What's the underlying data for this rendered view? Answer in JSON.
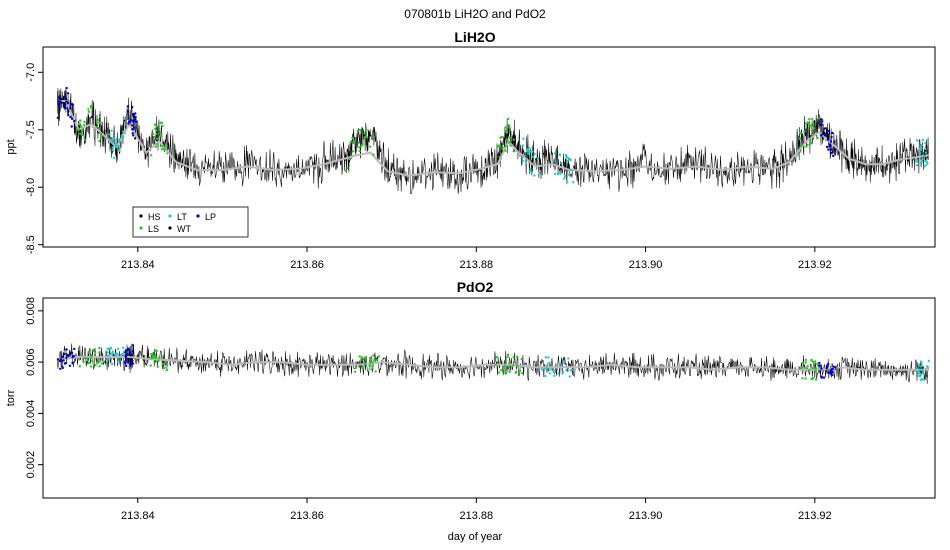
{
  "figure": {
    "title": "070801b   LiH2O and PdO2",
    "xlabel": "day of year"
  },
  "colors": {
    "HS": "#000000",
    "LS": "#22cc22",
    "LT": "#22cccc",
    "WT": "#000000",
    "LP": "#0000cc",
    "trace": "#000000",
    "smooth": "#bbbbbb"
  },
  "chart_data": [
    {
      "type": "line",
      "title": "LiH2O",
      "ylabel": "ppt",
      "xlim": [
        213.8288,
        213.9342
      ],
      "ylim": [
        -8.52,
        -6.78
      ],
      "x_ticks": [
        "213.84",
        "213.86",
        "213.88",
        "213.90",
        "213.92"
      ],
      "y_ticks": [
        "-7.0",
        "-7.5",
        "-8.0",
        "-8.5"
      ],
      "legend": {
        "placement": "bottom-left",
        "entries": [
          "HS",
          "LS",
          "LT",
          "WT",
          "LP"
        ]
      },
      "series": [
        {
          "name": "",
          "style": "raw",
          "x": [
            213.8305,
            213.8315,
            213.833,
            213.8345,
            213.836,
            213.8375,
            213.839,
            213.841,
            213.8425,
            213.8445,
            213.847,
            213.85,
            213.853,
            213.856,
            213.859,
            213.862,
            213.8645,
            213.866,
            213.8675,
            213.8695,
            213.872,
            213.875,
            213.878,
            213.8805,
            213.8825,
            213.8838,
            213.885,
            213.887,
            213.889,
            213.891,
            213.894,
            213.897,
            213.9,
            213.903,
            213.906,
            213.909,
            213.912,
            213.915,
            213.917,
            213.919,
            213.9205,
            213.922,
            213.924,
            213.926,
            213.928,
            213.93,
            213.932,
            213.9335
          ],
          "y": [
            -7.3,
            -7.2,
            -7.55,
            -7.4,
            -7.55,
            -7.65,
            -7.35,
            -7.7,
            -7.5,
            -7.75,
            -7.85,
            -7.85,
            -7.8,
            -7.85,
            -7.85,
            -7.8,
            -7.75,
            -7.6,
            -7.55,
            -7.85,
            -7.9,
            -7.85,
            -7.9,
            -7.85,
            -7.75,
            -7.5,
            -7.65,
            -7.8,
            -7.75,
            -7.85,
            -7.85,
            -7.85,
            -7.8,
            -7.85,
            -7.8,
            -7.85,
            -7.8,
            -7.85,
            -7.75,
            -7.55,
            -7.45,
            -7.6,
            -7.75,
            -7.8,
            -7.8,
            -7.75,
            -7.7,
            -7.7
          ]
        },
        {
          "name": "",
          "style": "smooth",
          "x": [
            213.8305,
            213.8315,
            213.833,
            213.8345,
            213.836,
            213.8375,
            213.839,
            213.841,
            213.8425,
            213.8445,
            213.847,
            213.85,
            213.853,
            213.856,
            213.859,
            213.862,
            213.8645,
            213.866,
            213.8675,
            213.8695,
            213.872,
            213.875,
            213.878,
            213.8805,
            213.8825,
            213.8838,
            213.885,
            213.887,
            213.889,
            213.891,
            213.894,
            213.897,
            213.9,
            213.903,
            213.906,
            213.909,
            213.912,
            213.915,
            213.917,
            213.919,
            213.9205,
            213.922,
            213.924,
            213.926,
            213.928,
            213.93,
            213.932,
            213.9335
          ],
          "y": [
            -7.25,
            -7.25,
            -7.5,
            -7.45,
            -7.55,
            -7.65,
            -7.45,
            -7.7,
            -7.6,
            -7.78,
            -7.85,
            -7.85,
            -7.82,
            -7.85,
            -7.84,
            -7.8,
            -7.75,
            -7.72,
            -7.7,
            -7.86,
            -7.9,
            -7.87,
            -7.88,
            -7.84,
            -7.8,
            -7.6,
            -7.7,
            -7.82,
            -7.8,
            -7.85,
            -7.86,
            -7.85,
            -7.82,
            -7.84,
            -7.82,
            -7.85,
            -7.82,
            -7.84,
            -7.78,
            -7.6,
            -7.52,
            -7.62,
            -7.75,
            -7.8,
            -7.8,
            -7.76,
            -7.74,
            -7.72
          ]
        }
      ]
    },
    {
      "type": "line",
      "title": "PdO2",
      "ylabel": "torr",
      "xlabel": "day of year",
      "xlim": [
        213.8288,
        213.9342
      ],
      "ylim": [
        0.0007,
        0.0085
      ],
      "x_ticks": [
        "213.84",
        "213.86",
        "213.88",
        "213.90",
        "213.92"
      ],
      "y_ticks": [
        "0.002",
        "0.004",
        "0.006",
        "0.008"
      ],
      "series": [
        {
          "name": "",
          "style": "raw",
          "x": [
            213.8305,
            213.833,
            213.836,
            213.8385,
            213.839,
            213.8395,
            213.842,
            213.845,
            213.848,
            213.851,
            213.854,
            213.857,
            213.86,
            213.863,
            213.866,
            213.869,
            213.872,
            213.875,
            213.878,
            213.881,
            213.884,
            213.887,
            213.89,
            213.893,
            213.896,
            213.899,
            213.902,
            213.905,
            213.908,
            213.911,
            213.914,
            213.917,
            213.92,
            213.923,
            213.926,
            213.929,
            213.932,
            213.9335
          ],
          "y": [
            0.0061,
            0.0062,
            0.0062,
            0.0062,
            0.0061,
            0.0063,
            0.0061,
            0.006,
            0.006,
            0.0059,
            0.006,
            0.006,
            0.0059,
            0.0059,
            0.0059,
            0.006,
            0.0059,
            0.0058,
            0.0058,
            0.0059,
            0.0059,
            0.0058,
            0.0058,
            0.0058,
            0.0059,
            0.0058,
            0.0058,
            0.0058,
            0.0057,
            0.0058,
            0.0058,
            0.0057,
            0.0057,
            0.0058,
            0.0057,
            0.0057,
            0.0057,
            0.0057
          ]
        },
        {
          "name": "",
          "style": "smooth",
          "x": [
            213.8305,
            213.833,
            213.836,
            213.839,
            213.842,
            213.845,
            213.848,
            213.851,
            213.854,
            213.857,
            213.86,
            213.863,
            213.866,
            213.869,
            213.872,
            213.875,
            213.878,
            213.881,
            213.884,
            213.887,
            213.89,
            213.893,
            213.896,
            213.899,
            213.902,
            213.905,
            213.908,
            213.911,
            213.914,
            213.917,
            213.92,
            213.923,
            213.926,
            213.929,
            213.932,
            213.9335
          ],
          "y": [
            0.0061,
            0.0062,
            0.0062,
            0.0062,
            0.0061,
            0.00605,
            0.006,
            0.0059,
            0.006,
            0.006,
            0.0059,
            0.0059,
            0.0059,
            0.006,
            0.0059,
            0.0058,
            0.0058,
            0.0059,
            0.0059,
            0.0058,
            0.0058,
            0.0058,
            0.0059,
            0.0058,
            0.0058,
            0.0058,
            0.0057,
            0.0058,
            0.0058,
            0.0057,
            0.0057,
            0.0058,
            0.0057,
            0.0057,
            0.0057,
            0.0057
          ]
        }
      ]
    }
  ]
}
